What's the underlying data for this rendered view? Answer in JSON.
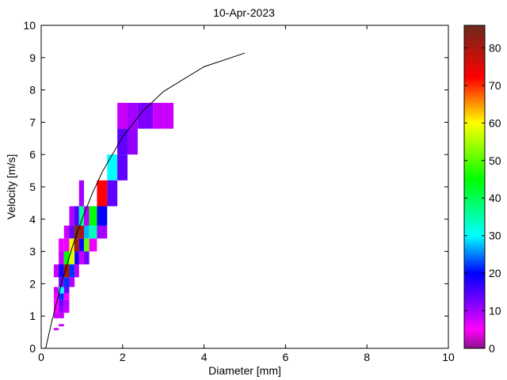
{
  "chart_data": {
    "type": "heatmap",
    "title": "10-Apr-2023",
    "xlabel": "Diameter [mm]",
    "ylabel": "Velocity [m/s]",
    "xlim": [
      0,
      10
    ],
    "ylim": [
      0,
      10
    ],
    "xticks": [
      0,
      2,
      4,
      6,
      8,
      10
    ],
    "yticks": [
      0,
      1,
      2,
      3,
      4,
      5,
      6,
      7,
      8,
      9,
      10
    ],
    "grid": false,
    "colorbar": {
      "range": [
        0,
        86
      ],
      "ticks": [
        0,
        10,
        20,
        30,
        40,
        50,
        60,
        70,
        80
      ],
      "placement": "right",
      "colormap": [
        {
          "value": 0,
          "color": "#8c0f8c"
        },
        {
          "value": 5,
          "color": "#ff00ff"
        },
        {
          "value": 12,
          "color": "#8000ff"
        },
        {
          "value": 20,
          "color": "#0000ff"
        },
        {
          "value": 30,
          "color": "#00ffff"
        },
        {
          "value": 45,
          "color": "#00ff00"
        },
        {
          "value": 60,
          "color": "#ffff00"
        },
        {
          "value": 72,
          "color": "#ff0000"
        },
        {
          "value": 86,
          "color": "#6b2a1c"
        }
      ]
    },
    "cells_columns": [
      "d_min",
      "d_max",
      "v_min",
      "v_max",
      "count"
    ],
    "cells": [
      [
        1.87,
        2.12,
        6.8,
        7.6,
        8
      ],
      [
        2.12,
        2.37,
        6.8,
        7.6,
        10
      ],
      [
        2.37,
        2.75,
        6.8,
        7.6,
        12
      ],
      [
        2.75,
        3.25,
        6.8,
        7.6,
        8
      ],
      [
        1.87,
        2.12,
        6.0,
        6.8,
        14
      ],
      [
        2.12,
        2.37,
        6.0,
        6.8,
        11
      ],
      [
        1.62,
        1.87,
        5.2,
        6.0,
        30
      ],
      [
        1.87,
        2.12,
        5.2,
        6.0,
        14
      ],
      [
        0.93,
        1.05,
        4.4,
        5.2,
        10
      ],
      [
        1.37,
        1.62,
        4.4,
        5.2,
        72
      ],
      [
        1.62,
        1.87,
        4.4,
        5.2,
        14
      ],
      [
        0.69,
        0.81,
        3.8,
        4.4,
        9
      ],
      [
        0.81,
        0.93,
        3.8,
        4.4,
        15
      ],
      [
        0.93,
        1.05,
        3.8,
        4.4,
        36
      ],
      [
        1.05,
        1.18,
        3.8,
        4.4,
        9
      ],
      [
        1.18,
        1.37,
        3.8,
        4.4,
        45
      ],
      [
        1.37,
        1.62,
        3.8,
        4.4,
        20
      ],
      [
        0.56,
        0.69,
        3.4,
        3.8,
        8
      ],
      [
        0.69,
        0.81,
        3.4,
        3.8,
        14
      ],
      [
        0.81,
        0.93,
        3.4,
        3.8,
        84
      ],
      [
        0.93,
        1.05,
        3.4,
        3.8,
        80
      ],
      [
        1.05,
        1.18,
        3.4,
        3.8,
        27
      ],
      [
        1.18,
        1.37,
        3.4,
        3.8,
        34
      ],
      [
        1.37,
        1.62,
        3.4,
        3.8,
        10
      ],
      [
        0.43,
        0.56,
        3.0,
        3.4,
        6
      ],
      [
        0.56,
        0.69,
        3.0,
        3.4,
        6
      ],
      [
        0.69,
        0.81,
        3.0,
        3.4,
        59
      ],
      [
        0.81,
        0.93,
        3.0,
        3.4,
        80
      ],
      [
        0.93,
        1.05,
        3.0,
        3.4,
        19
      ],
      [
        1.05,
        1.18,
        3.0,
        3.4,
        51
      ],
      [
        1.18,
        1.37,
        3.0,
        3.4,
        6
      ],
      [
        0.43,
        0.56,
        2.6,
        3.0,
        8
      ],
      [
        0.56,
        0.69,
        2.6,
        3.0,
        45
      ],
      [
        0.69,
        0.82,
        2.6,
        3.0,
        58
      ],
      [
        0.82,
        0.93,
        2.6,
        3.0,
        19
      ],
      [
        0.93,
        1.05,
        2.6,
        3.0,
        8
      ],
      [
        1.05,
        1.18,
        2.6,
        3.0,
        13
      ],
      [
        0.31,
        0.43,
        2.2,
        2.6,
        8
      ],
      [
        0.43,
        0.56,
        2.2,
        2.6,
        19
      ],
      [
        0.56,
        0.69,
        2.2,
        2.6,
        80
      ],
      [
        0.69,
        0.82,
        2.2,
        2.6,
        22
      ],
      [
        0.82,
        0.93,
        2.2,
        2.6,
        9
      ],
      [
        0.43,
        0.56,
        1.9,
        2.2,
        13
      ],
      [
        0.56,
        0.69,
        1.9,
        2.2,
        22
      ],
      [
        0.69,
        0.82,
        1.9,
        2.2,
        9
      ],
      [
        0.31,
        0.43,
        1.7,
        1.9,
        8
      ],
      [
        0.43,
        0.56,
        1.7,
        1.9,
        30
      ],
      [
        0.56,
        0.69,
        1.7,
        1.9,
        13
      ],
      [
        0.31,
        0.43,
        1.5,
        1.7,
        5
      ],
      [
        0.43,
        0.56,
        1.5,
        1.7,
        22
      ],
      [
        0.56,
        0.69,
        1.5,
        1.7,
        5
      ],
      [
        0.31,
        0.43,
        1.3,
        1.5,
        5
      ],
      [
        0.43,
        0.56,
        1.3,
        1.5,
        13
      ],
      [
        0.56,
        0.69,
        1.3,
        1.5,
        9
      ],
      [
        0.31,
        0.43,
        1.1,
        1.3,
        5
      ],
      [
        0.43,
        0.56,
        1.1,
        1.3,
        11
      ],
      [
        0.56,
        0.69,
        1.1,
        1.3,
        8
      ],
      [
        0.31,
        0.43,
        0.93,
        1.1,
        8
      ],
      [
        0.43,
        0.56,
        0.93,
        1.1,
        8
      ],
      [
        0.43,
        0.56,
        0.68,
        0.75,
        8
      ],
      [
        0.31,
        0.43,
        0.56,
        0.63,
        8
      ]
    ],
    "fall_speed_curve": {
      "x": [
        0.11,
        0.25,
        0.5,
        0.75,
        1,
        1.25,
        1.5,
        2,
        2.5,
        3,
        4,
        5
      ],
      "y": [
        0,
        0.78,
        2.02,
        3.08,
        3.99,
        4.78,
        5.46,
        6.55,
        7.35,
        7.95,
        8.72,
        9.14
      ],
      "color": "#000000"
    }
  }
}
